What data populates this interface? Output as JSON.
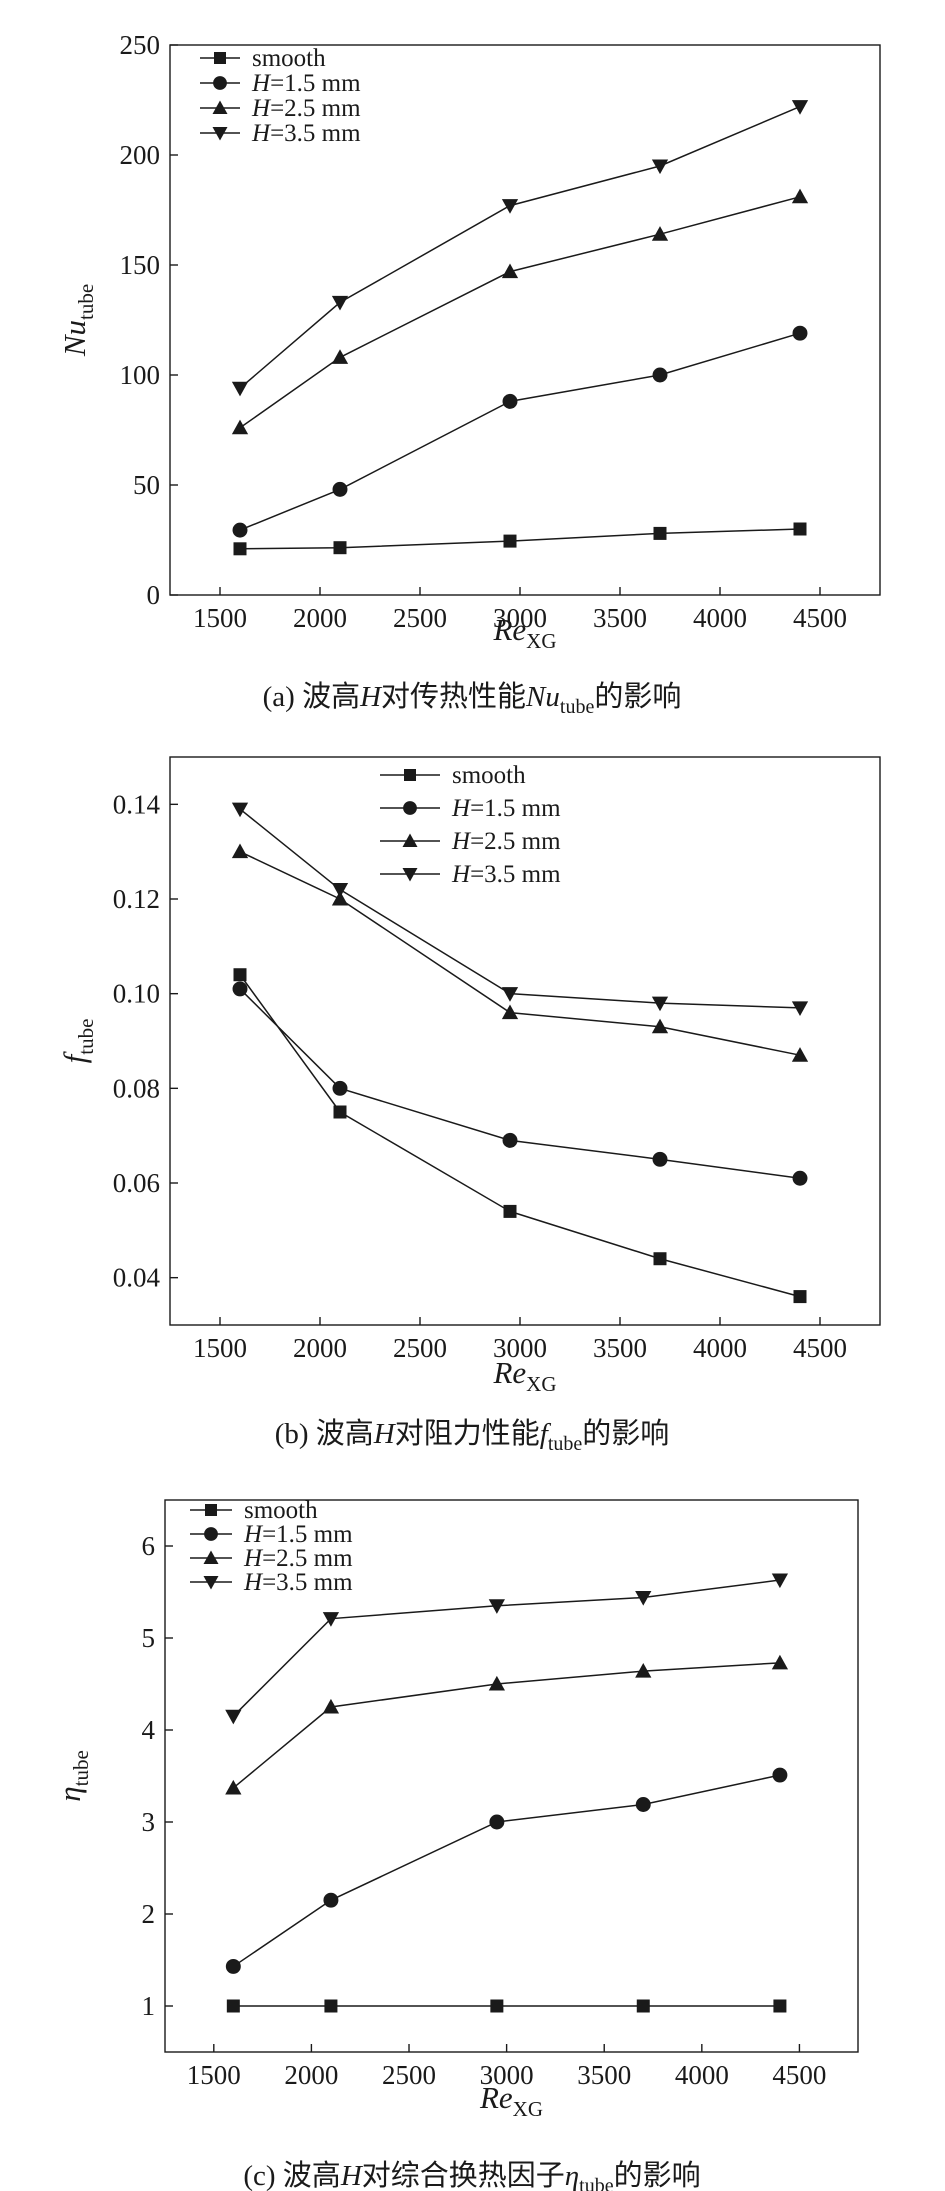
{
  "chart_data": [
    {
      "id": "a",
      "type": "line",
      "x": [
        1600,
        2100,
        2950,
        3700,
        4400
      ],
      "xlim": [
        1250,
        4800
      ],
      "ylim": [
        0,
        250
      ],
      "xticks": [
        1500,
        2000,
        2500,
        3000,
        3500,
        4000,
        4500
      ],
      "yticks": [
        0,
        50,
        100,
        150,
        200,
        250
      ],
      "xlabel_main": "Re",
      "xlabel_sub": "XG",
      "ylabel_main": "Nu",
      "ylabel_sub": "tube",
      "legend_position": "top-left",
      "series": [
        {
          "name": "smooth",
          "legend_prefix": "",
          "legend_suffix": "smooth",
          "marker": "square",
          "values": [
            21,
            21.5,
            24.5,
            28,
            30
          ]
        },
        {
          "name": "H=1.5 mm",
          "legend_prefix": "H",
          "legend_suffix": "=1.5 mm",
          "marker": "circle",
          "values": [
            29.5,
            48,
            88,
            100,
            119
          ]
        },
        {
          "name": "H=2.5 mm",
          "legend_prefix": "H",
          "legend_suffix": "=2.5 mm",
          "marker": "triangle-up",
          "values": [
            76,
            108,
            147,
            164,
            181
          ]
        },
        {
          "name": "H=3.5 mm",
          "legend_prefix": "H",
          "legend_suffix": "=3.5 mm",
          "marker": "triangle-down",
          "values": [
            94,
            133,
            177,
            195,
            222
          ]
        }
      ],
      "caption": {
        "pre": "(a) 波高",
        "var": "H",
        "mid": "对传热性能",
        "sym": "Nu",
        "sub": "tube",
        "post": "的影响"
      }
    },
    {
      "id": "b",
      "type": "line",
      "x": [
        1600,
        2100,
        2950,
        3700,
        4400
      ],
      "xlim": [
        1250,
        4800
      ],
      "ylim": [
        0.03,
        0.15
      ],
      "xticks": [
        1500,
        2000,
        2500,
        3000,
        3500,
        4000,
        4500
      ],
      "yticks": [
        0.04,
        0.06,
        0.08,
        0.1,
        0.12,
        0.14
      ],
      "ytick_labels": [
        "0.04",
        "0.06",
        "0.08",
        "0.10",
        "0.12",
        "0.14"
      ],
      "xlabel_main": "Re",
      "xlabel_sub": "XG",
      "ylabel_main": "f",
      "ylabel_sub": "tube",
      "legend_position": "top-center",
      "series": [
        {
          "name": "smooth",
          "legend_prefix": "",
          "legend_suffix": "smooth",
          "marker": "square",
          "values": [
            0.104,
            0.075,
            0.054,
            0.044,
            0.036
          ]
        },
        {
          "name": "H=1.5 mm",
          "legend_prefix": "H",
          "legend_suffix": "=1.5 mm",
          "marker": "circle",
          "values": [
            0.101,
            0.08,
            0.069,
            0.065,
            0.061
          ]
        },
        {
          "name": "H=2.5 mm",
          "legend_prefix": "H",
          "legend_suffix": "=2.5 mm",
          "marker": "triangle-up",
          "values": [
            0.13,
            0.12,
            0.096,
            0.093,
            0.087
          ]
        },
        {
          "name": "H=3.5 mm",
          "legend_prefix": "H",
          "legend_suffix": "=3.5 mm",
          "marker": "triangle-down",
          "values": [
            0.139,
            0.122,
            0.1,
            0.098,
            0.097
          ]
        }
      ],
      "caption": {
        "pre": "(b) 波高",
        "var": "H",
        "mid": "对阻力性能",
        "sym": "f",
        "sub": "tube",
        "post": "的影响"
      }
    },
    {
      "id": "c",
      "type": "line",
      "x": [
        1600,
        2100,
        2950,
        3700,
        4400
      ],
      "xlim": [
        1250,
        4800
      ],
      "ylim": [
        0.5,
        6.5
      ],
      "xticks": [
        1500,
        2000,
        2500,
        3000,
        3500,
        4000,
        4500
      ],
      "yticks": [
        1,
        2,
        3,
        4,
        5,
        6
      ],
      "xlabel_main": "Re",
      "xlabel_sub": "XG",
      "ylabel_main": "η",
      "ylabel_sub": "tube",
      "legend_position": "top-left",
      "series": [
        {
          "name": "smooth",
          "legend_prefix": "",
          "legend_suffix": "smooth",
          "marker": "square",
          "values": [
            1,
            1,
            1,
            1,
            1
          ]
        },
        {
          "name": "H=1.5 mm",
          "legend_prefix": "H",
          "legend_suffix": "=1.5 mm",
          "marker": "circle",
          "values": [
            1.43,
            2.15,
            3.0,
            3.19,
            3.51
          ]
        },
        {
          "name": "H=2.5 mm",
          "legend_prefix": "H",
          "legend_suffix": "=2.5 mm",
          "marker": "triangle-up",
          "values": [
            3.37,
            4.25,
            4.5,
            4.64,
            4.73
          ]
        },
        {
          "name": "H=3.5 mm",
          "legend_prefix": "H",
          "legend_suffix": "=3.5 mm",
          "marker": "triangle-down",
          "values": [
            4.15,
            5.21,
            5.35,
            5.44,
            5.63
          ]
        }
      ],
      "caption": {
        "pre": "(c) 波高",
        "var": "H",
        "mid": "对综合换热因子",
        "sym": "η",
        "sub": "tube",
        "post": "的影响"
      }
    }
  ]
}
